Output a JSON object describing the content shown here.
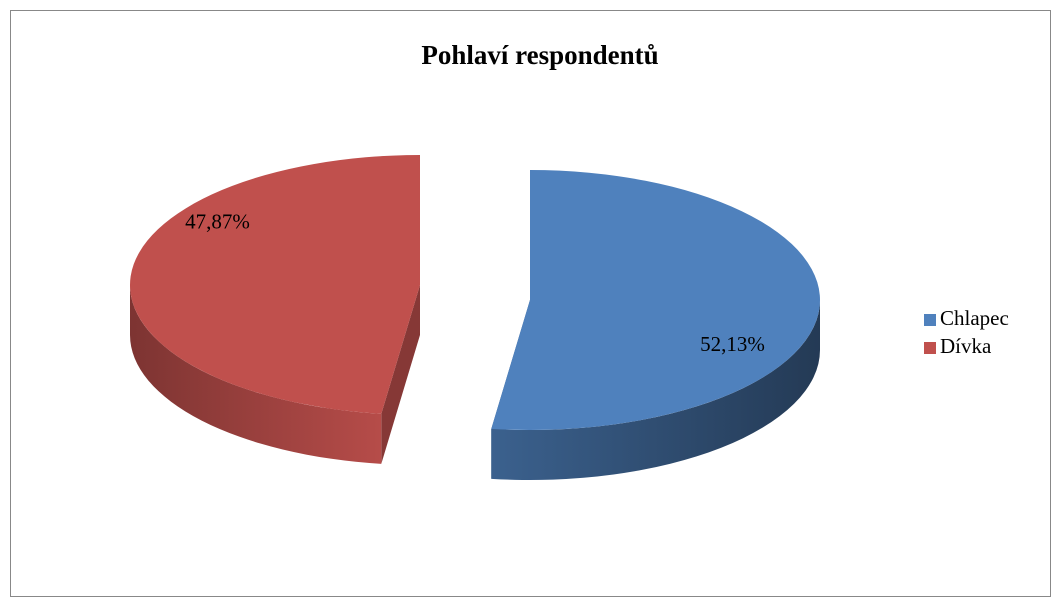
{
  "chart_data": {
    "type": "pie",
    "title": "Pohlaví respondentů",
    "categories": [
      "Chlapec",
      "Dívka"
    ],
    "values": [
      52.13,
      47.87
    ],
    "value_labels": [
      "52,13%",
      "47,87%"
    ],
    "colors": [
      "#4f81bd",
      "#c0504d"
    ],
    "legend": "right"
  }
}
